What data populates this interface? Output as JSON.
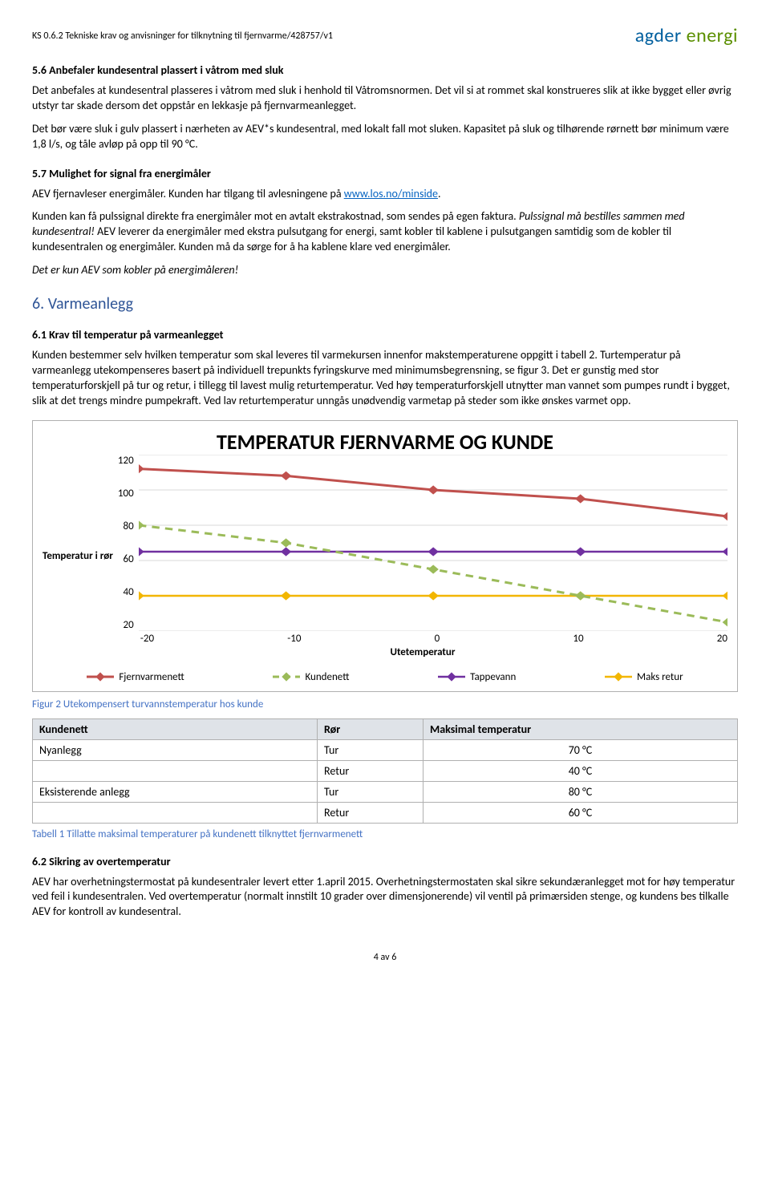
{
  "header": {
    "meta": "KS 0.6.2 Tekniske krav og anvisninger for tilknytning til fjernvarme/428757/v1",
    "logo_a": "agder",
    "logo_b": "energi"
  },
  "s56": {
    "h": "5.6 Anbefaler kundesentral plassert i våtrom med sluk",
    "p1": "Det anbefales at kundesentral plasseres i våtrom med sluk i henhold til Våtromsnormen. Det vil si at rommet skal konstrueres slik at ikke bygget eller øvrig utstyr tar skade dersom det oppstår en lekkasje på fjernvarmeanlegget.",
    "p2": "Det bør være sluk i gulv plassert i nærheten av AEV*s kundesentral, med lokalt fall mot sluken. Kapasitet på sluk og tilhørende rørnett bør minimum være 1,8 l/s, og tåle avløp på opp til 90 °C."
  },
  "s57": {
    "h": "5.7 Mulighet for signal fra energimåler",
    "p1a": "AEV fjernavleser energimåler. Kunden har tilgang til avlesningene på ",
    "link": "www.los.no/minside",
    "p1b": ".",
    "p2a": "Kunden kan få pulssignal direkte fra energimåler mot en avtalt ekstrakostnad, som sendes på egen faktura. ",
    "p2i": "Pulssignal må bestilles sammen med kundesentral!",
    "p2b": " AEV leverer da energimåler med ekstra pulsutgang for energi, samt kobler til kablene i pulsutgangen samtidig som de kobler til kundesentralen og energimåler. Kunden må da sørge for å ha kablene klare ved energimåler.",
    "p3": "Det er kun AEV som kobler på energimåleren!"
  },
  "s6": {
    "h": "6.  Varmeanlegg"
  },
  "s61": {
    "h": "6.1 Krav til temperatur på varmeanlegget",
    "p": "Kunden bestemmer selv hvilken temperatur som skal leveres til varmekursen innenfor makstemperaturene oppgitt i tabell 2. Turtemperatur på varmeanlegg utekompenseres basert på individuell trepunkts fyringskurve med minimumsbegrensning, se figur 3.  Det er gunstig med stor temperaturforskjell på tur og retur, i tillegg til lavest mulig returtemperatur. Ved høy temperaturforskjell utnytter man vannet som pumpes rundt i bygget, slik at det trengs mindre pumpekraft. Ved lav returtemperatur unngås unødvendig varmetap på steder som ikke ønskes varmet opp."
  },
  "chart": {
    "title": "TEMPERATUR FJERNVARME OG KUNDE",
    "ylabel": "Temperatur i rør",
    "xlabel": "Utetemperatur",
    "xlim": [
      -20,
      20
    ],
    "ylim": [
      20,
      120
    ],
    "xticks": [
      "-20",
      "-10",
      "0",
      "10",
      "20"
    ],
    "yticks": [
      "120",
      "100",
      "80",
      "60",
      "40",
      "20"
    ],
    "x_points": [
      -20,
      -10,
      0,
      10,
      20
    ],
    "series": {
      "fjernvarme": {
        "label": "Fjernvarmenett",
        "color": "#c0504d",
        "values": [
          112,
          108,
          100,
          95,
          85
        ],
        "dash": "none",
        "width": 3
      },
      "kundenett": {
        "label": "Kundenett",
        "color": "#9bbb59",
        "values": [
          80,
          70,
          55,
          40,
          25
        ],
        "dash": "8,6",
        "width": 3
      },
      "tappevann": {
        "label": "Tappevann",
        "color": "#7030a0",
        "values": [
          65,
          65,
          65,
          65,
          65
        ],
        "dash": "none",
        "width": 2.5
      },
      "maksretur": {
        "label": "Maks retur",
        "color": "#f2b600",
        "values": [
          40,
          40,
          40,
          40,
          40
        ],
        "dash": "none",
        "width": 2.5
      }
    },
    "grid_color": "#d9d9d9",
    "bg": "#ffffff",
    "caption": "Figur 2 Utekompensert turvannstemperatur hos kunde"
  },
  "table": {
    "headers": [
      "Kundenett",
      "Rør",
      "Maksimal temperatur"
    ],
    "rows": [
      [
        "Nyanlegg",
        "Tur",
        "70 °C"
      ],
      [
        "",
        "Retur",
        "40 °C"
      ],
      [
        "Eksisterende anlegg",
        "Tur",
        "80 °C"
      ],
      [
        "",
        "Retur",
        "60 °C"
      ]
    ],
    "caption": "Tabell 1 Tillatte maksimal temperaturer på kundenett tilknyttet fjernvarmenett"
  },
  "s62": {
    "h": "6.2 Sikring av overtemperatur",
    "p": "AEV har overhetningstermostat på kundesentraler levert etter 1.april 2015. Overhetningstermostaten skal sikre sekundæranlegget mot for høy temperatur ved feil i kundesentralen. Ved overtemperatur (normalt innstilt 10 grader over dimensjonerende) vil ventil på primærsiden stenge, og kundens bes tilkalle AEV for kontroll av kundesentral."
  },
  "footer": {
    "page": "4 av 6"
  }
}
